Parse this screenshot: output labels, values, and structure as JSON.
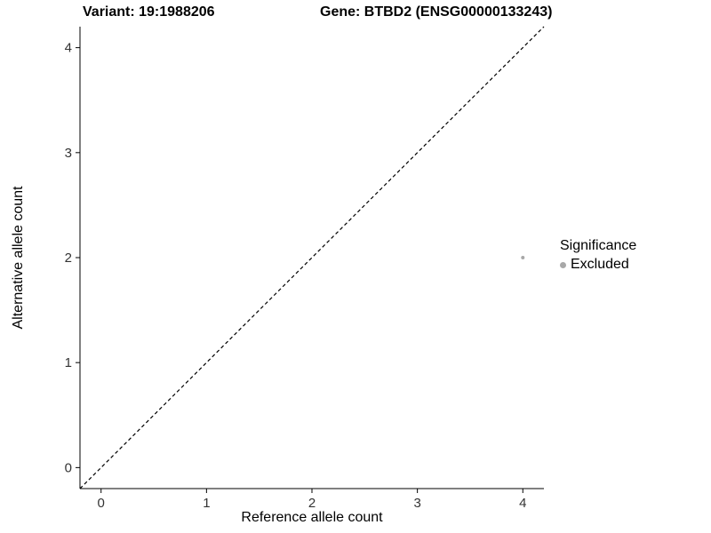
{
  "chart_data": {
    "type": "scatter",
    "title_left": "Variant: 19:1988206",
    "title_right": "Gene: BTBD2 (ENSG00000133243)",
    "xlabel": "Reference allele count",
    "ylabel": "Alternative allele count",
    "xlim": [
      -0.2,
      4.2
    ],
    "ylim": [
      -0.2,
      4.2
    ],
    "xticks": [
      0,
      1,
      2,
      3,
      4
    ],
    "yticks": [
      0,
      1,
      2,
      3,
      4
    ],
    "grid": false,
    "panel_background": "#ffffff",
    "axis_color": "#000000",
    "tick_label_color": "#333333",
    "identity_line": {
      "style": "dashed",
      "color": "#000000",
      "from": [
        -0.2,
        -0.2
      ],
      "to": [
        4.2,
        4.2
      ]
    },
    "series": [
      {
        "name": "Excluded",
        "color": "#a8a8a8",
        "point_radius": 2,
        "points": [
          {
            "x": 4,
            "y": 2
          }
        ]
      }
    ],
    "legend": {
      "position": "right",
      "title": "Significance",
      "items": [
        {
          "label": "Excluded",
          "color": "#a8a8a8"
        }
      ]
    }
  }
}
